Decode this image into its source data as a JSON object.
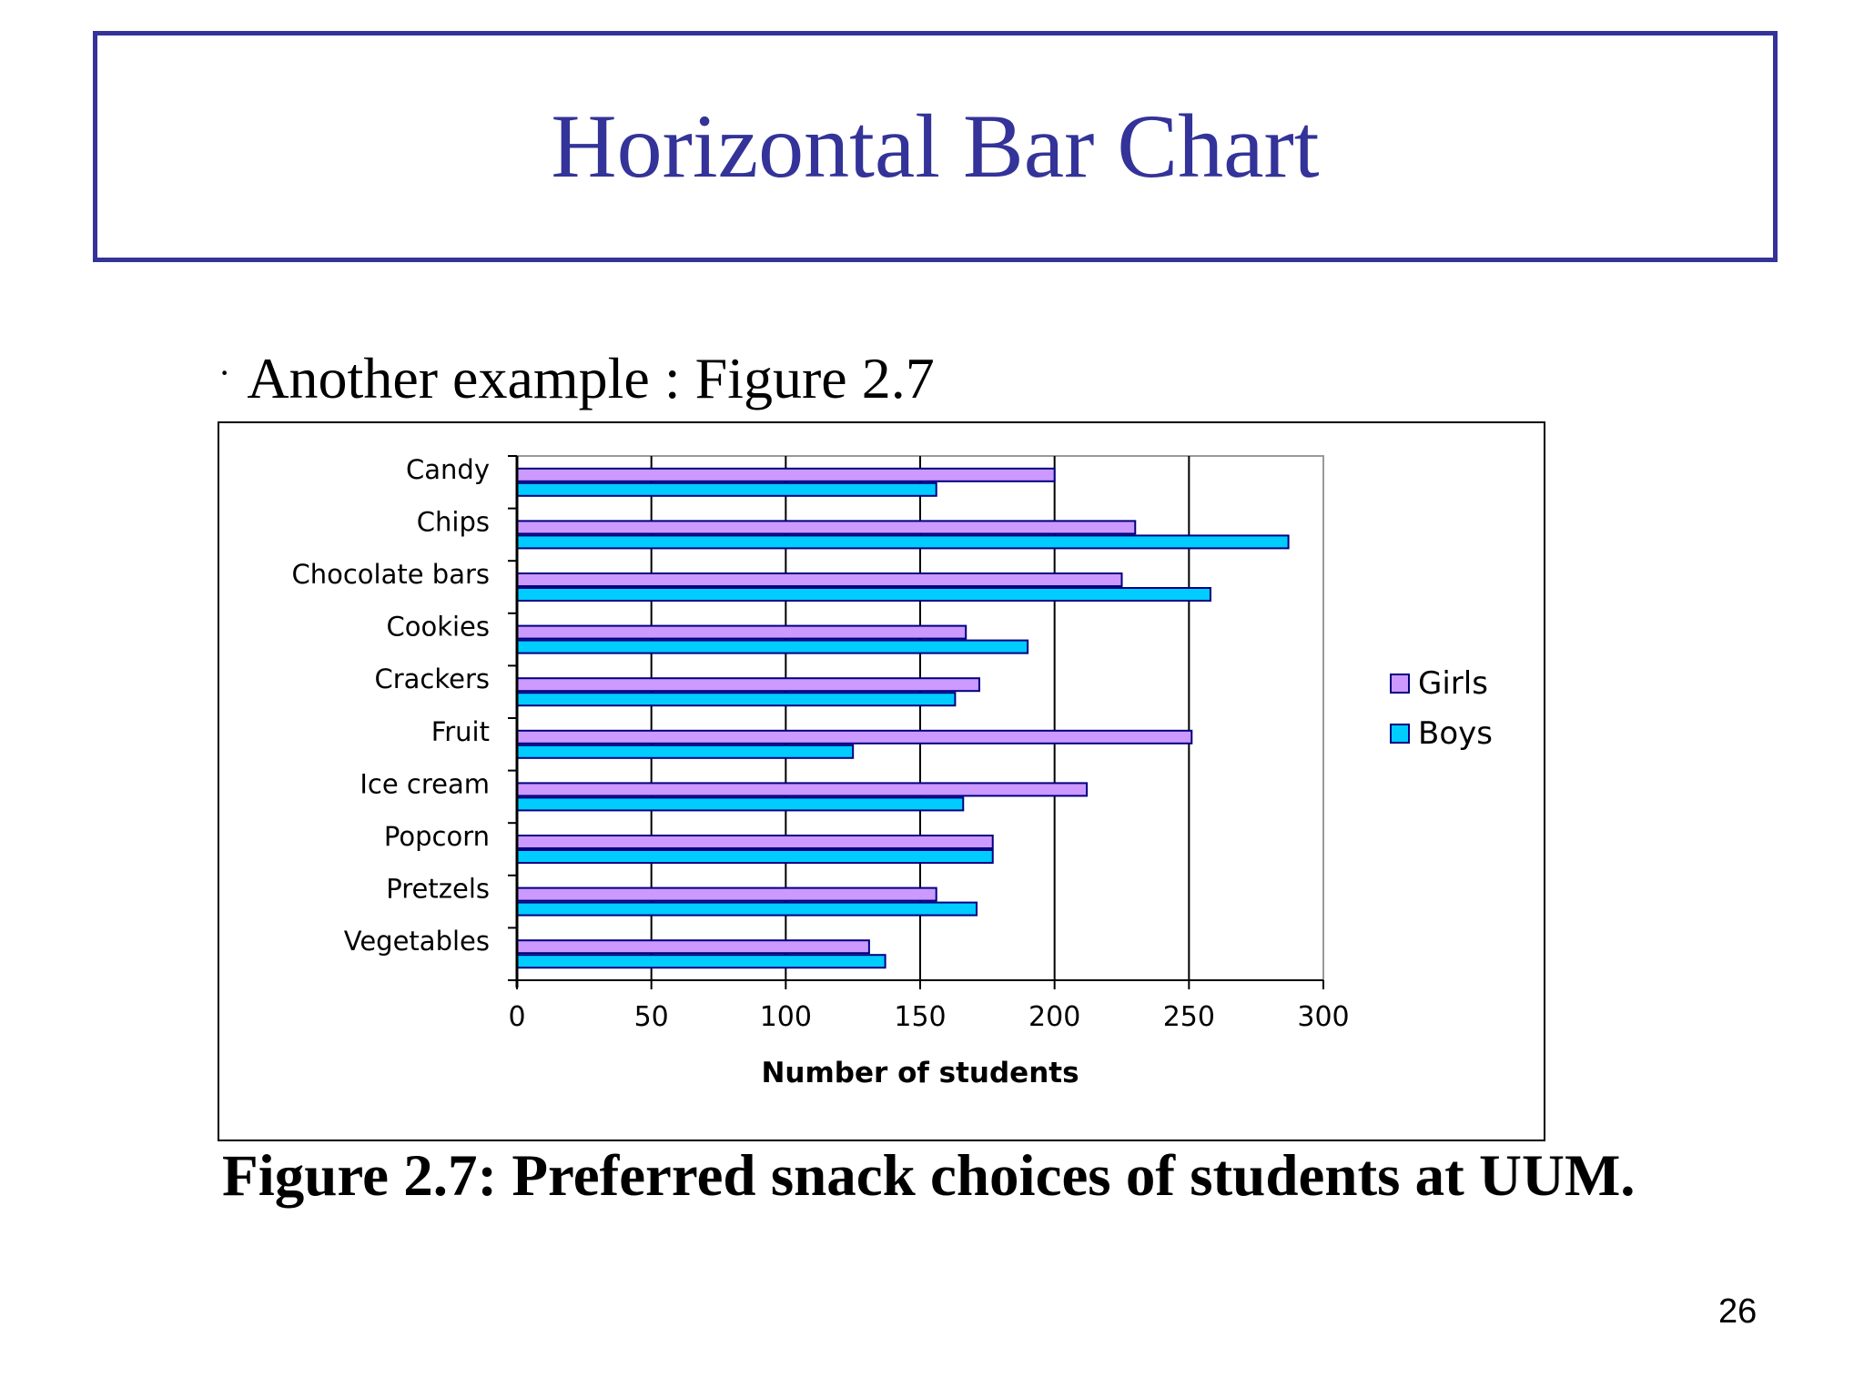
{
  "slide": {
    "title": "Horizontal Bar Chart",
    "bullet": "·",
    "bullet_text": "Another example : Figure 2.7",
    "caption": "Figure 2.7: Preferred snack choices of students at UUM.",
    "page_number": "26"
  },
  "colors": {
    "title": "#333399",
    "girls_fill": "#CC99FF",
    "boys_fill": "#00CCFF",
    "bar_outline": "#000080",
    "axis": "#000000",
    "grid": "#000000",
    "plot_border": "#999999"
  },
  "chart_data": {
    "type": "bar",
    "orientation": "horizontal",
    "categories": [
      "Candy",
      "Chips",
      "Chocolate bars",
      "Cookies",
      "Crackers",
      "Fruit",
      "Ice cream",
      "Popcorn",
      "Pretzels",
      "Vegetables"
    ],
    "series": [
      {
        "name": "Girls",
        "values": [
          200,
          230,
          225,
          167,
          172,
          251,
          212,
          177,
          156,
          131
        ]
      },
      {
        "name": "Boys",
        "values": [
          156,
          287,
          258,
          190,
          163,
          125,
          166,
          177,
          171,
          137
        ]
      }
    ],
    "xlabel": "Number of students",
    "ylabel": "",
    "xlim": [
      0,
      300
    ],
    "xticks": [
      "0",
      "50",
      "100",
      "150",
      "200",
      "250",
      "300"
    ],
    "grid": "vertical",
    "legend": "right"
  }
}
